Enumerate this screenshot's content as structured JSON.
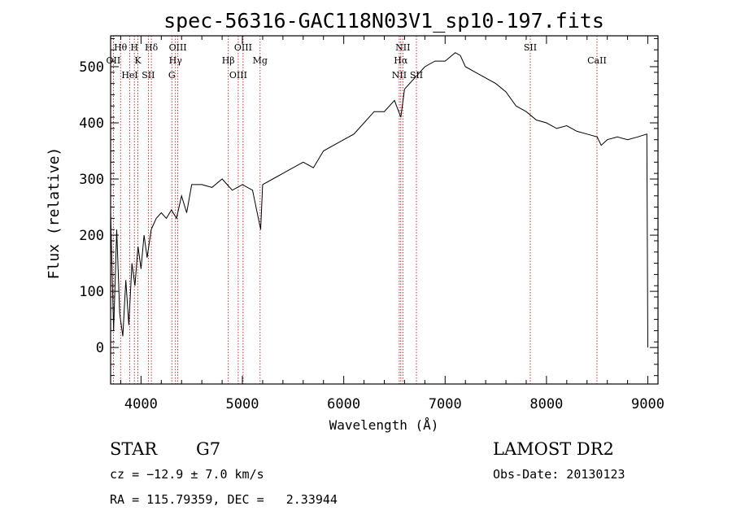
{
  "chart_data": {
    "type": "line",
    "title": "spec-56316-GAC118N03V1_sp10-197.fits",
    "xlabel": "Wavelength (Å)",
    "ylabel": "Flux (relative)",
    "xlim": [
      3700,
      9100
    ],
    "ylim": [
      -65,
      555
    ],
    "x_ticks": [
      4000,
      5000,
      6000,
      7000,
      8000,
      9000
    ],
    "y_ticks": [
      0,
      100,
      200,
      300,
      400,
      500
    ],
    "grid": false,
    "series": [
      {
        "x": [
          3700,
          3730,
          3760,
          3790,
          3820,
          3850,
          3880,
          3910,
          3940,
          3970,
          4000,
          4030,
          4060,
          4100,
          4150,
          4200,
          4250,
          4300,
          4350,
          4400,
          4450,
          4500,
          4600,
          4700,
          4800,
          4900,
          5000,
          5100,
          5180,
          5200,
          5300,
          5400,
          5500,
          5600,
          5700,
          5800,
          5900,
          6000,
          6100,
          6200,
          6300,
          6400,
          6500,
          6563,
          6600,
          6700,
          6800,
          6900,
          7000,
          7100,
          7150,
          7200,
          7300,
          7400,
          7500,
          7600,
          7700,
          7800,
          7900,
          8000,
          8100,
          8200,
          8300,
          8400,
          8500,
          8540,
          8600,
          8700,
          8800,
          8900,
          8990,
          9000
        ],
        "y": [
          240,
          30,
          210,
          60,
          20,
          120,
          40,
          150,
          110,
          180,
          140,
          200,
          160,
          210,
          230,
          240,
          230,
          245,
          230,
          270,
          240,
          290,
          290,
          285,
          300,
          280,
          290,
          280,
          210,
          290,
          300,
          310,
          320,
          330,
          320,
          350,
          360,
          370,
          380,
          400,
          420,
          420,
          440,
          410,
          460,
          480,
          500,
          510,
          510,
          525,
          520,
          500,
          490,
          480,
          470,
          455,
          430,
          420,
          405,
          400,
          390,
          395,
          385,
          380,
          375,
          360,
          370,
          375,
          370,
          375,
          380,
          0
        ]
      }
    ],
    "lines": [
      {
        "label": "Hθ",
        "x": 3798
      },
      {
        "label": "OII",
        "x": 3727
      },
      {
        "label": "HeI",
        "x": 3889
      },
      {
        "label": "H",
        "x": 3934
      },
      {
        "label": "K",
        "x": 3969
      },
      {
        "label": "SII",
        "x": 4072
      },
      {
        "label": "Hδ",
        "x": 4102
      },
      {
        "label": "Hγ",
        "x": 4340
      },
      {
        "label": "G",
        "x": 4304
      },
      {
        "label": "OIII",
        "x": 4363
      },
      {
        "label": "Hβ",
        "x": 4861
      },
      {
        "label": "OIII",
        "x": 4959
      },
      {
        "label": "OIII",
        "x": 5007
      },
      {
        "label": "Mg",
        "x": 5175
      },
      {
        "label": "NII",
        "x": 6548
      },
      {
        "label": "NII",
        "x": 6583
      },
      {
        "label": "Hα",
        "x": 6563
      },
      {
        "label": "SII",
        "x": 6717
      },
      {
        "label": "SII",
        "x": 7840
      },
      {
        "label": "CaII",
        "x": 8498
      }
    ]
  },
  "footer": {
    "class_label": "STAR",
    "subclass": "G7",
    "survey": "LAMOST DR2",
    "cz": "cz = −12.9 ± 7.0 km/s",
    "obs_date": "Obs-Date: 20130123",
    "radec": "RA = 115.79359, DEC =   2.33944"
  }
}
